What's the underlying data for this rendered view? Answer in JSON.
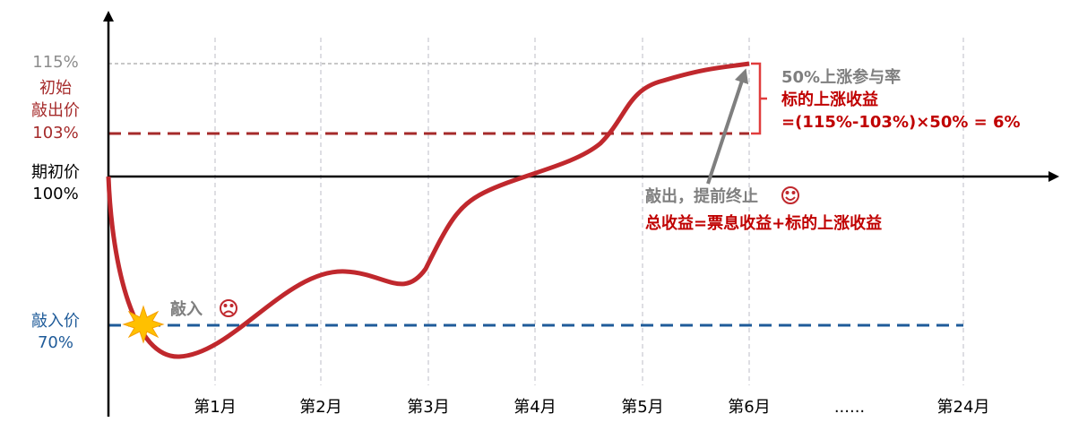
{
  "axis_labels": {
    "level_115": "115%",
    "initial_knockout": [
      "初始",
      "敲出价",
      "103%"
    ],
    "initial_price": [
      "期初价",
      "100%"
    ],
    "knock_in": [
      "敲入价",
      "70%"
    ]
  },
  "months": [
    "第1月",
    "第2月",
    "第3月",
    "第4月",
    "第5月",
    "第6月",
    "......",
    "第24月"
  ],
  "annotations": {
    "knock_in_event": "敲入",
    "participation": "50%上涨参与率",
    "gain_title": "标的上涨收益",
    "gain_formula": "=(115%-103%)×50% = 6%",
    "knock_out_event": "敲出，提前终止",
    "total_return": "总收益=票息收益+标的上涨收益"
  }
}
